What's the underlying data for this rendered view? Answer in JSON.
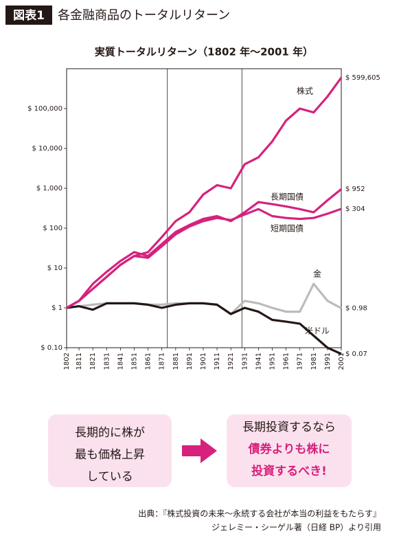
{
  "figure_label": "図表1",
  "header_title": "各金融商品のトータルリターン",
  "chart_data": {
    "type": "line",
    "title": "実質トータルリターン（1802 年〜2001 年）",
    "log_scale_y": true,
    "x": [
      1802,
      1811,
      1821,
      1831,
      1841,
      1851,
      1861,
      1871,
      1881,
      1891,
      1901,
      1911,
      1921,
      1931,
      1941,
      1951,
      1961,
      1971,
      1981,
      1991,
      2001
    ],
    "xlim": [
      1802,
      2001
    ],
    "xticks": [
      1802,
      1811,
      1821,
      1831,
      1841,
      1851,
      1861,
      1871,
      1881,
      1891,
      1901,
      1911,
      1921,
      1931,
      1941,
      1951,
      1961,
      1971,
      1981,
      1991,
      2001
    ],
    "ylim": [
      0.1,
      1000000
    ],
    "yticks": [
      {
        "value": 0.1,
        "label": "$ 0.10"
      },
      {
        "value": 1,
        "label": "$ 1"
      },
      {
        "value": 10,
        "label": "$ 10"
      },
      {
        "value": 100,
        "label": "$ 100"
      },
      {
        "value": 1000,
        "label": "$ 1,000"
      },
      {
        "value": 10000,
        "label": "$ 10,000"
      },
      {
        "value": 100000,
        "label": "$ 100,000"
      }
    ],
    "x_gridlines": [
      1875,
      1929
    ],
    "series": [
      {
        "name": "株式",
        "color": "#d6217d",
        "end_label": "$ 599,605",
        "values": [
          1,
          1.5,
          3,
          6,
          12,
          20,
          25,
          60,
          150,
          250,
          700,
          1200,
          1000,
          4000,
          6000,
          15000,
          50000,
          100000,
          80000,
          200000,
          599605
        ]
      },
      {
        "name": "長期国債",
        "color": "#d6217d",
        "end_label": "$ 952",
        "values": [
          1,
          1.5,
          4,
          8,
          15,
          25,
          20,
          40,
          80,
          120,
          170,
          200,
          150,
          250,
          450,
          400,
          350,
          300,
          250,
          500,
          952
        ]
      },
      {
        "name": "短期国債",
        "color": "#d6217d",
        "end_label": "$ 304",
        "values": [
          1,
          1.5,
          3,
          6,
          12,
          20,
          18,
          35,
          70,
          110,
          150,
          180,
          160,
          220,
          300,
          200,
          180,
          170,
          180,
          230,
          304
        ]
      },
      {
        "name": "金",
        "color": "#bbbbbb",
        "end_label": "$ 0.98",
        "values": [
          1,
          1.1,
          1.2,
          1.3,
          1.3,
          1.3,
          1.2,
          1.2,
          1.3,
          1.3,
          1.3,
          1.2,
          0.7,
          1.5,
          1.3,
          1,
          0.8,
          0.8,
          4,
          1.5,
          0.98
        ]
      },
      {
        "name": "米ドル",
        "color": "#231815",
        "end_label": "$ 0.07",
        "values": [
          1,
          1.1,
          0.9,
          1.3,
          1.3,
          1.3,
          1.2,
          1.0,
          1.2,
          1.3,
          1.3,
          1.2,
          0.7,
          1.0,
          0.8,
          0.5,
          0.45,
          0.4,
          0.2,
          0.1,
          0.07
        ]
      }
    ]
  },
  "notes": {
    "left": [
      "長期的に株が",
      "最も価格上昇",
      "している"
    ],
    "right": [
      "長期投資するなら",
      "債券よりも株に",
      "投資するべき!"
    ]
  },
  "source": [
    "出典：『株式投資の未来〜永続する会社が本当の利益をもたらす』",
    "ジェレミー・シーゲル著（日経 BP）より引用"
  ]
}
